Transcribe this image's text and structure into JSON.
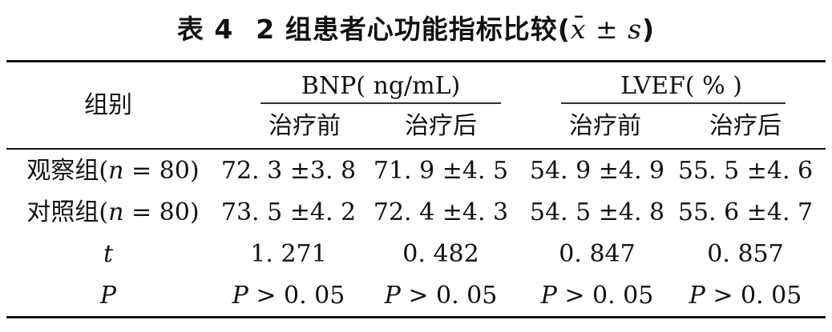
{
  "title": {
    "num": "表 4",
    "text": "2 组患者心功能指标比较(",
    "xbar": "x",
    "bar": "¯",
    "pm": " ± ",
    "s": "s",
    "close": ")"
  },
  "header": {
    "group": "组别",
    "bnp": "BNP( ng/mL)",
    "lvef": "LVEF( % )",
    "before": "治疗前",
    "after": "治疗后"
  },
  "rows": [
    {
      "label": "观察组(",
      "n": "n",
      "neq": " = 80)",
      "v": [
        "72. 3 ±3. 8",
        "71. 9 ±4. 5",
        "54. 9 ±4. 9",
        "55. 5 ±4. 6"
      ]
    },
    {
      "label": "对照组(",
      "n": "n",
      "neq": " = 80)",
      "v": [
        "73. 5 ±4. 2",
        "72. 4 ±4. 3",
        "54. 5 ±4. 8",
        "55. 6 ±4. 7"
      ]
    },
    {
      "label": "t",
      "v": [
        "1. 271",
        "0. 482",
        "0. 847",
        "0. 857"
      ]
    },
    {
      "label": "P",
      "v": [
        "P > 0. 05",
        "P > 0. 05",
        "P > 0. 05",
        "P > 0. 05"
      ]
    }
  ]
}
